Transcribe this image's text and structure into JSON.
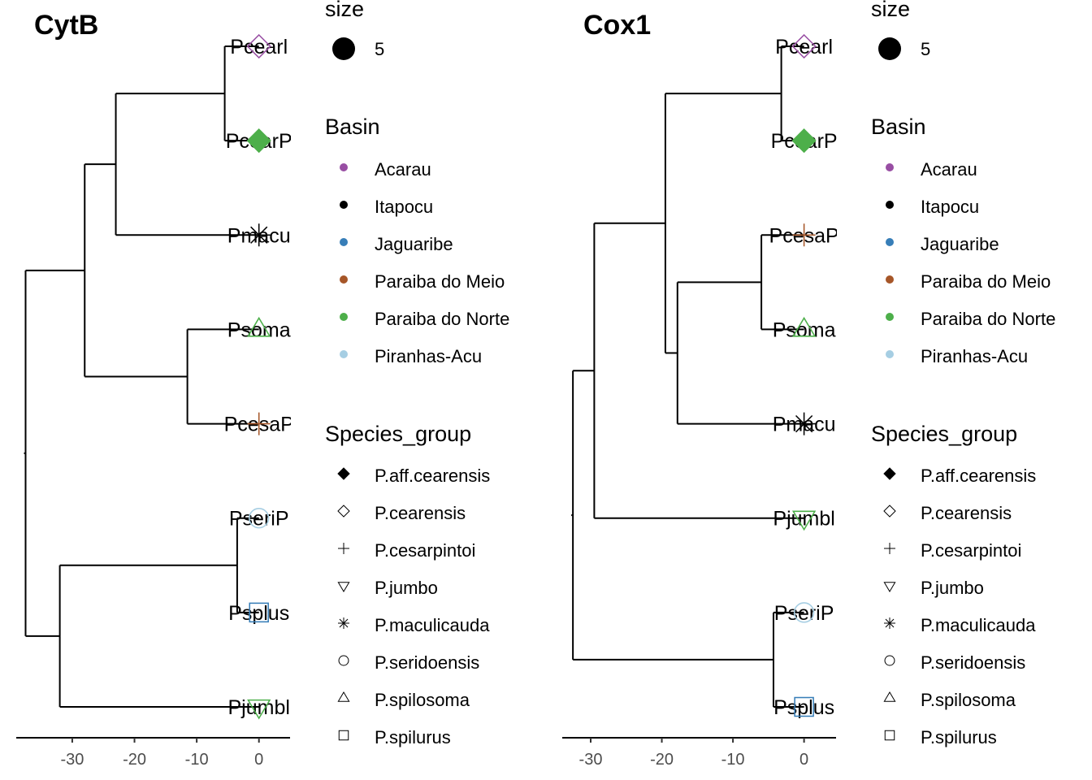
{
  "chart_data": [
    {
      "type": "dendrogram",
      "title": "CytB",
      "xlim": [
        -39,
        5
      ],
      "x_ticks": [
        -30,
        -20,
        -10,
        0
      ],
      "tips": [
        {
          "label": "Pcearl",
          "species_group": "P.cearensis",
          "basin": "Acarau"
        },
        {
          "label": "PcearP",
          "species_group": "P.aff.cearensis",
          "basin": "Paraiba do Norte"
        },
        {
          "label": "Pmacu",
          "species_group": "P.maculicauda",
          "basin": "Itapocu"
        },
        {
          "label": "Psoma",
          "species_group": "P.spilosoma",
          "basin": "Paraiba do Norte"
        },
        {
          "label": "PcesaP",
          "species_group": "P.cesarpintoi",
          "basin": "Paraiba do Meio"
        },
        {
          "label": "PseriP",
          "species_group": "P.seridoensis",
          "basin": "Piranhas-Acu"
        },
        {
          "label": "Psplus",
          "species_group": "P.spilurus",
          "basin": "Jaguaribe"
        },
        {
          "label": "Pjumbl",
          "species_group": "P.jumbo",
          "basin": "Paraiba do Norte"
        }
      ],
      "nodes": [
        {
          "id": "n1",
          "x": -37.5,
          "children": [
            "n2",
            "n3"
          ]
        },
        {
          "id": "n2",
          "x": -28.0,
          "children": [
            "n4",
            "n5"
          ]
        },
        {
          "id": "n4",
          "x": -23.0,
          "children": [
            "n6",
            2
          ]
        },
        {
          "id": "n6",
          "x": -5.5,
          "children": [
            0,
            1
          ]
        },
        {
          "id": "n5",
          "x": -11.5,
          "children": [
            3,
            4
          ]
        },
        {
          "id": "n3",
          "x": -32.0,
          "children": [
            "n7",
            7
          ]
        },
        {
          "id": "n7",
          "x": -3.5,
          "children": [
            5,
            6
          ]
        }
      ]
    },
    {
      "type": "dendrogram",
      "title": "Cox1",
      "xlim": [
        -34,
        4.5
      ],
      "x_ticks": [
        -30,
        -20,
        -10,
        0
      ],
      "tips": [
        {
          "label": "Pcearl",
          "species_group": "P.cearensis",
          "basin": "Acarau"
        },
        {
          "label": "PcearP",
          "species_group": "P.aff.cearensis",
          "basin": "Paraiba do Norte"
        },
        {
          "label": "PcesaP",
          "species_group": "P.cesarpintoi",
          "basin": "Paraiba do Meio"
        },
        {
          "label": "Psoma",
          "species_group": "P.spilosoma",
          "basin": "Paraiba do Norte"
        },
        {
          "label": "Pmacu",
          "species_group": "P.maculicauda",
          "basin": "Itapocu"
        },
        {
          "label": "Pjumbl",
          "species_group": "P.jumbo",
          "basin": "Paraiba do Norte"
        },
        {
          "label": "PseriP",
          "species_group": "P.seridoensis",
          "basin": "Piranhas-Acu"
        },
        {
          "label": "Psplus",
          "species_group": "P.spilurus",
          "basin": "Jaguaribe"
        }
      ],
      "nodes": [
        {
          "id": "m1",
          "x": -32.5,
          "children": [
            "m2",
            "m3"
          ]
        },
        {
          "id": "m2",
          "x": -29.5,
          "children": [
            "m4",
            5
          ]
        },
        {
          "id": "m4",
          "x": -19.5,
          "children": [
            "m5",
            "m6"
          ]
        },
        {
          "id": "m5",
          "x": -3.2,
          "children": [
            0,
            1
          ]
        },
        {
          "id": "m6",
          "x": -17.8,
          "children": [
            "m7",
            4
          ]
        },
        {
          "id": "m7",
          "x": -6.0,
          "children": [
            2,
            3
          ]
        },
        {
          "id": "m3",
          "x": -4.3,
          "children": [
            6,
            7
          ]
        }
      ]
    }
  ],
  "legend": {
    "size": {
      "title": "size",
      "value": "5"
    },
    "basin": {
      "title": "Basin",
      "items": [
        {
          "label": "Acarau",
          "color": "#984ea3"
        },
        {
          "label": "Itapocu",
          "color": "#000000"
        },
        {
          "label": "Jaguaribe",
          "color": "#377eb8"
        },
        {
          "label": "Paraiba do Meio",
          "color": "#a65628"
        },
        {
          "label": "Paraiba do Norte",
          "color": "#4daf4a"
        },
        {
          "label": "Piranhas-Acu",
          "color": "#a6cee3"
        }
      ]
    },
    "species_group": {
      "title": "Species_group",
      "items": [
        {
          "label": "P.aff.cearensis",
          "shape": "filled-diamond"
        },
        {
          "label": "P.cearensis",
          "shape": "open-diamond"
        },
        {
          "label": "P.cesarpintoi",
          "shape": "plus"
        },
        {
          "label": "P.jumbo",
          "shape": "triangle-down"
        },
        {
          "label": "P.maculicauda",
          "shape": "asterisk"
        },
        {
          "label": "P.seridoensis",
          "shape": "circle"
        },
        {
          "label": "P.spilosoma",
          "shape": "triangle-up"
        },
        {
          "label": "P.spilurus",
          "shape": "square"
        }
      ]
    }
  }
}
